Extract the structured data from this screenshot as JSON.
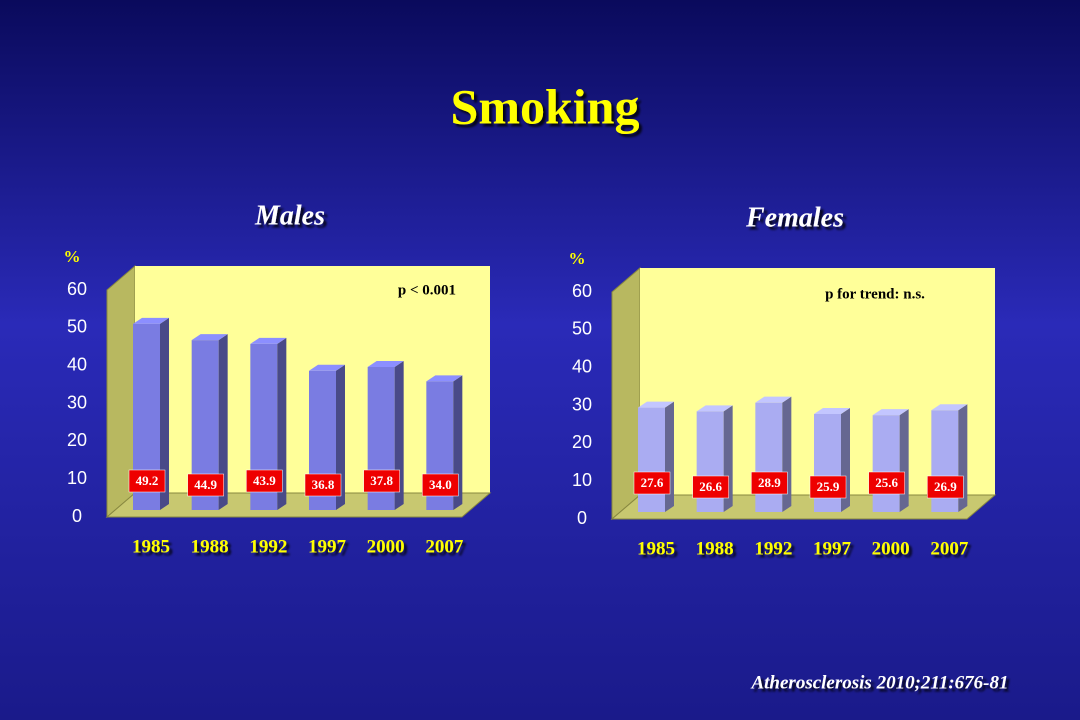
{
  "title": "Smoking",
  "citation": "Atherosclerosis 2010;211:676-81",
  "chart_data": [
    {
      "type": "bar",
      "title": "Males",
      "y_label": "%",
      "annotation": "p < 0.001",
      "categories": [
        "1985",
        "1988",
        "1992",
        "1997",
        "2000",
        "2007"
      ],
      "values": [
        49.2,
        44.9,
        43.9,
        36.8,
        37.8,
        34.0
      ],
      "value_labels": [
        "49.2",
        "44.9",
        "43.9",
        "36.8",
        "37.8",
        "34.0"
      ],
      "color": "#7a7ce2",
      "ylim": [
        0,
        60
      ],
      "yticks": [
        0,
        10,
        20,
        30,
        40,
        50,
        60
      ]
    },
    {
      "type": "bar",
      "title": "Females",
      "y_label": "%",
      "annotation": "p for trend: n.s.",
      "categories": [
        "1985",
        "1988",
        "1992",
        "1997",
        "2000",
        "2007"
      ],
      "values": [
        27.6,
        26.6,
        28.9,
        25.9,
        25.6,
        26.9
      ],
      "color": "#aaacf2",
      "ylim": [
        0,
        60
      ],
      "yticks": [
        0,
        10,
        20,
        30,
        40,
        50,
        60
      ]
    }
  ]
}
